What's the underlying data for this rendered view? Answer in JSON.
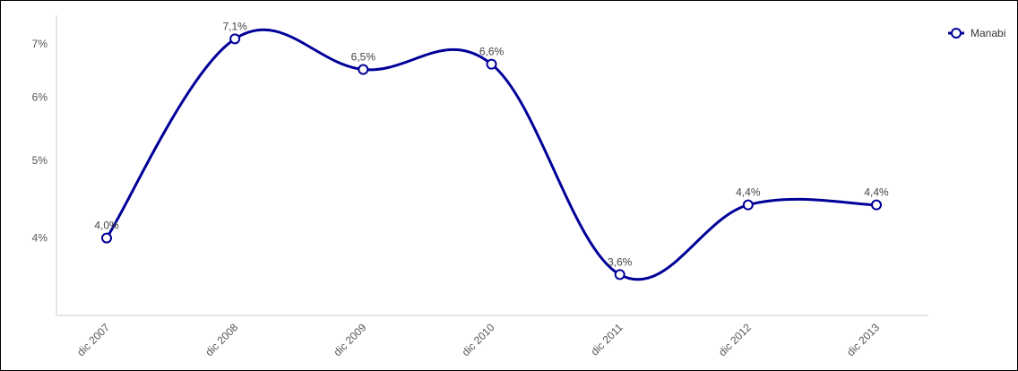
{
  "chart_data": {
    "type": "line",
    "categories": [
      "dic 2007",
      "dic 2008",
      "dic 2009",
      "dic 2010",
      "dic 2011",
      "dic 2012",
      "dic 2013"
    ],
    "series": [
      {
        "name": "Manabi",
        "values": [
          4.0,
          7.1,
          6.5,
          6.6,
          3.6,
          4.4,
          4.4
        ],
        "labels": [
          "4,0%",
          "7,1%",
          "6,5%",
          "6,6%",
          "3,6%",
          "4,4%",
          "4,4%"
        ],
        "color": "#000099"
      }
    ],
    "yticks": [
      {
        "value": 4,
        "label": "4%"
      },
      {
        "value": 5,
        "label": "5%"
      },
      {
        "value": 6,
        "label": "6%"
      },
      {
        "value": 7,
        "label": "7%"
      }
    ],
    "ylim": [
      3.2,
      7.6
    ],
    "scale": "log",
    "grid": false,
    "legend_position": "top-right",
    "curve": "smooth",
    "axis_color": "#cccccc"
  }
}
